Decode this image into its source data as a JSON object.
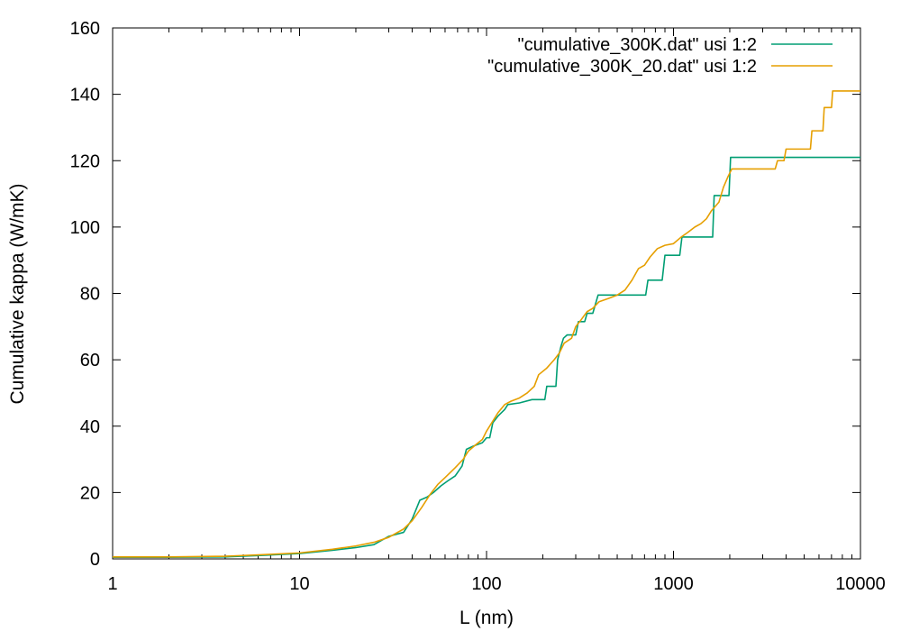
{
  "chart_data": {
    "type": "line",
    "title": "",
    "xlabel": "L (nm)",
    "ylabel": "Cumulative kappa (W/mK)",
    "xscale": "log",
    "xlim": [
      1,
      10000
    ],
    "ylim": [
      0,
      160
    ],
    "xticks": [
      1,
      10,
      100,
      1000,
      10000
    ],
    "yticks": [
      0,
      20,
      40,
      60,
      80,
      100,
      120,
      140,
      160
    ],
    "xtick_labels": [
      "1",
      "10",
      "100",
      "1000",
      "10000"
    ],
    "ytick_labels": [
      "0",
      "20",
      "40",
      "60",
      "80",
      "100",
      "120",
      "140",
      "160"
    ],
    "grid": false,
    "legend_position": "top-right",
    "series": [
      {
        "name": "\"cumulative_300K.dat\" usi 1:2",
        "color": "#009e73",
        "points": [
          [
            1,
            0.5
          ],
          [
            2,
            0.5
          ],
          [
            4,
            0.6
          ],
          [
            6,
            1.0
          ],
          [
            10,
            1.6
          ],
          [
            15,
            2.6
          ],
          [
            20,
            3.4
          ],
          [
            25,
            4.3
          ],
          [
            30,
            6.8
          ],
          [
            36,
            8.0
          ],
          [
            40,
            12
          ],
          [
            44,
            17.7
          ],
          [
            48,
            18.6
          ],
          [
            52,
            20
          ],
          [
            57,
            22
          ],
          [
            62,
            23.5
          ],
          [
            68,
            25
          ],
          [
            74,
            28
          ],
          [
            78,
            33
          ],
          [
            85,
            34
          ],
          [
            95,
            35
          ],
          [
            100,
            36.5
          ],
          [
            104,
            36.5
          ],
          [
            108,
            41
          ],
          [
            115,
            43
          ],
          [
            125,
            45
          ],
          [
            130,
            46.5
          ],
          [
            150,
            47
          ],
          [
            175,
            48
          ],
          [
            205,
            48
          ],
          [
            210,
            52
          ],
          [
            235,
            52
          ],
          [
            240,
            60
          ],
          [
            250,
            64
          ],
          [
            258,
            66.5
          ],
          [
            270,
            67.5
          ],
          [
            300,
            67.5
          ],
          [
            310,
            71.5
          ],
          [
            335,
            71.5
          ],
          [
            345,
            74
          ],
          [
            370,
            74
          ],
          [
            395,
            79.5
          ],
          [
            710,
            79.5
          ],
          [
            730,
            84
          ],
          [
            870,
            84
          ],
          [
            900,
            91.5
          ],
          [
            1080,
            91.5
          ],
          [
            1110,
            97
          ],
          [
            1620,
            97
          ],
          [
            1650,
            109.5
          ],
          [
            1980,
            109.5
          ],
          [
            2020,
            121
          ],
          [
            10000,
            121
          ]
        ]
      },
      {
        "name": "\"cumulative_300K_20.dat\" usi 1:2",
        "color": "#e69f00",
        "points": [
          [
            1,
            0.6
          ],
          [
            2,
            0.6
          ],
          [
            4,
            0.8
          ],
          [
            6,
            1.2
          ],
          [
            10,
            1.8
          ],
          [
            15,
            2.9
          ],
          [
            20,
            3.9
          ],
          [
            25,
            5.0
          ],
          [
            30,
            6.5
          ],
          [
            36,
            9.0
          ],
          [
            40,
            11.5
          ],
          [
            45,
            15.5
          ],
          [
            50,
            19.5
          ],
          [
            55,
            22.5
          ],
          [
            60,
            24.5
          ],
          [
            68,
            27.5
          ],
          [
            75,
            30
          ],
          [
            80,
            32.5
          ],
          [
            88,
            34.5
          ],
          [
            95,
            36
          ],
          [
            100,
            38.5
          ],
          [
            108,
            41.5
          ],
          [
            115,
            44
          ],
          [
            125,
            46.5
          ],
          [
            135,
            47.5
          ],
          [
            150,
            48.5
          ],
          [
            165,
            50
          ],
          [
            180,
            52
          ],
          [
            190,
            55.5
          ],
          [
            210,
            57.5
          ],
          [
            230,
            60
          ],
          [
            245,
            62
          ],
          [
            260,
            65
          ],
          [
            285,
            66.5
          ],
          [
            300,
            70
          ],
          [
            320,
            72
          ],
          [
            345,
            74.5
          ],
          [
            370,
            75.5
          ],
          [
            400,
            77.5
          ],
          [
            450,
            78.5
          ],
          [
            500,
            79.5
          ],
          [
            550,
            81
          ],
          [
            600,
            84
          ],
          [
            650,
            87.5
          ],
          [
            700,
            88.5
          ],
          [
            750,
            91
          ],
          [
            820,
            93.5
          ],
          [
            900,
            94.5
          ],
          [
            1000,
            95
          ],
          [
            1100,
            97
          ],
          [
            1200,
            98.5
          ],
          [
            1300,
            100
          ],
          [
            1400,
            101
          ],
          [
            1500,
            102.5
          ],
          [
            1600,
            105
          ],
          [
            1750,
            107.5
          ],
          [
            1850,
            112
          ],
          [
            1950,
            115
          ],
          [
            2050,
            117.5
          ],
          [
            2500,
            117.5
          ],
          [
            3500,
            117.5
          ],
          [
            3600,
            120
          ],
          [
            3900,
            120
          ],
          [
            4000,
            123.5
          ],
          [
            5400,
            123.5
          ],
          [
            5500,
            129
          ],
          [
            6300,
            129
          ],
          [
            6400,
            136
          ],
          [
            7000,
            136
          ],
          [
            7100,
            141
          ],
          [
            10000,
            141
          ]
        ]
      }
    ]
  }
}
